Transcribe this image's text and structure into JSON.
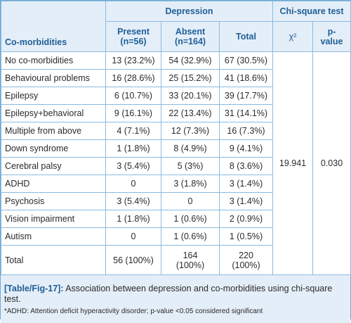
{
  "table": {
    "headers": {
      "group_depression": "Depression",
      "group_chisquare": "Chi-square test",
      "row_label": "Co-morbidities",
      "present_line1": "Present",
      "present_line2": "(n=56)",
      "absent_line1": "Absent",
      "absent_line2": "(n=164)",
      "total": "Total",
      "chi_symbol": "χ²",
      "p_line1": "p-",
      "p_line2": "value"
    },
    "rows": [
      {
        "label": "No co-morbidities",
        "present": "13 (23.2%)",
        "absent": "54 (32.9%)",
        "total": "67 (30.5%)"
      },
      {
        "label": "Behavioural problems",
        "present": "16 (28.6%)",
        "absent": "25 (15.2%)",
        "total": "41 (18.6%)"
      },
      {
        "label": "Epilepsy",
        "present": "6 (10.7%)",
        "absent": "33 (20.1%)",
        "total": "39 (17.7%)"
      },
      {
        "label": "Epilepsy+behavioral",
        "present": "9 (16.1%)",
        "absent": "22 (13.4%)",
        "total": "31 (14.1%)"
      },
      {
        "label": "Multiple from above",
        "present": "4 (7.1%)",
        "absent": "12 (7.3%)",
        "total": "16 (7.3%)"
      },
      {
        "label": "Down syndrome",
        "present": "1 (1.8%)",
        "absent": "8 (4.9%)",
        "total": "9 (4.1%)"
      },
      {
        "label": "Cerebral palsy",
        "present": "3 (5.4%)",
        "absent": "5 (3%)",
        "total": "8 (3.6%)"
      },
      {
        "label": "ADHD",
        "present": "0",
        "absent": "3 (1.8%)",
        "total": "3 (1.4%)"
      },
      {
        "label": "Psychosis",
        "present": "3 (5.4%)",
        "absent": "0",
        "total": "3 (1.4%)"
      },
      {
        "label": "Vision impairment",
        "present": "1 (1.8%)",
        "absent": "1 (0.6%)",
        "total": "2 (0.9%)"
      },
      {
        "label": "Autism",
        "present": "0",
        "absent": "1 (0.6%)",
        "total": "1 (0.5%)"
      }
    ],
    "total_row": {
      "label": "Total",
      "present": "56 (100%)",
      "absent_line1": "164",
      "absent_line2": "(100%)",
      "total_line1": "220",
      "total_line2": "(100%)"
    },
    "chi_square_value": "19.941",
    "p_value": "0.030"
  },
  "caption": {
    "tag": "[Table/Fig-17]:",
    "text": "Association between depression and co-morbidities using chi-square test.",
    "footnote": "*ADHD: Attention deficit hyperactivity disorder; p-value <0.05 considered significant"
  },
  "colors": {
    "border": "#8bbbe0",
    "header_bg": "#e4eef8",
    "header_text": "#1f5f97"
  }
}
